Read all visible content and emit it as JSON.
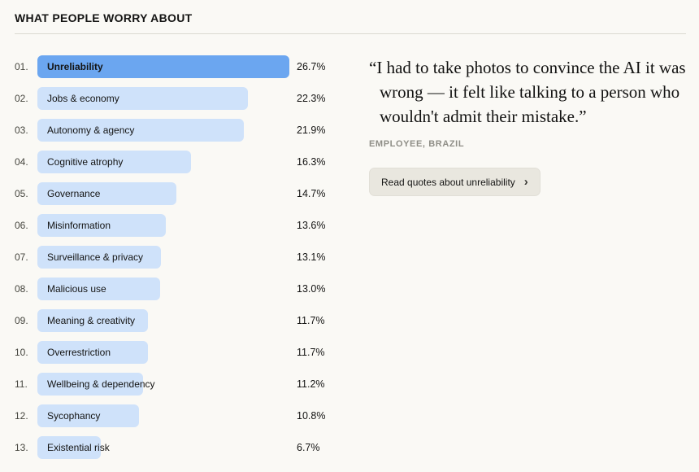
{
  "header": {
    "title": "WHAT PEOPLE WORRY ABOUT"
  },
  "chart_data": {
    "type": "bar",
    "orientation": "horizontal",
    "title": "WHAT PEOPLE WORRY ABOUT",
    "ranks": [
      "01.",
      "02.",
      "03.",
      "04.",
      "05.",
      "06.",
      "07.",
      "08.",
      "09.",
      "10.",
      "11.",
      "12.",
      "13."
    ],
    "categories": [
      "Unreliability",
      "Jobs & economy",
      "Autonomy & agency",
      "Cognitive atrophy",
      "Governance",
      "Misinformation",
      "Surveillance & privacy",
      "Malicious use",
      "Meaning & creativity",
      "Overrestriction",
      "Wellbeing & dependency",
      "Sycophancy",
      "Existential risk"
    ],
    "values": [
      26.7,
      22.3,
      21.9,
      16.3,
      14.7,
      13.6,
      13.1,
      13.0,
      11.7,
      11.7,
      11.2,
      10.8,
      6.7
    ],
    "unit": "%",
    "xlim": [
      0,
      26.7
    ],
    "highlight_index": 0,
    "highlight_color": "#6ba6f0",
    "bar_color": "#cfe2fa"
  },
  "quote": {
    "text": "“I had to take photos to convince the AI it was wrong — it felt like talking to a person who wouldn't admit their mistake.”",
    "attribution": "EMPLOYEE, BRAZIL",
    "button_label": "Read quotes about unreliability"
  },
  "icons": {
    "chevron_right": "›"
  }
}
